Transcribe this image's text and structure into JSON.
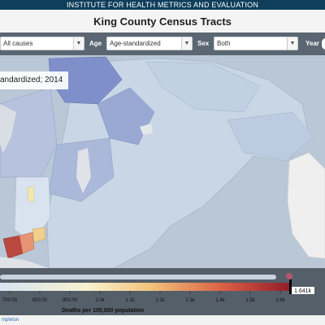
{
  "header": {
    "org": "INSTITUTE FOR HEALTH METRICS AND EVALUATION"
  },
  "page": {
    "title": "King County Census Tracts"
  },
  "filters": {
    "cause": {
      "value": "All causes"
    },
    "age": {
      "label": "Age",
      "value": "Age-standardized"
    },
    "sex": {
      "label": "Sex",
      "value": "Both"
    },
    "year": {
      "label": "Year"
    }
  },
  "map": {
    "subtitle": "andardized; 2014"
  },
  "legend": {
    "title": "Deaths per 100,000 population",
    "ticks": [
      "700.00",
      "800.00",
      "900.00",
      "1.0k",
      "1.1k",
      "1.2k",
      "1.3k",
      "1.4k",
      "1.5k",
      "1.6k"
    ],
    "max_label": "1.641k",
    "gradient_colors": [
      "#d6e6f2",
      "#f7f1cf",
      "#f2c27a",
      "#d75b42",
      "#8f1c2a"
    ]
  },
  "footer": {
    "link": "mpleton"
  },
  "colors": {
    "topbar": "#0f3e5b",
    "filterbar": "#5a6671",
    "legend_bg": "#555f69"
  }
}
